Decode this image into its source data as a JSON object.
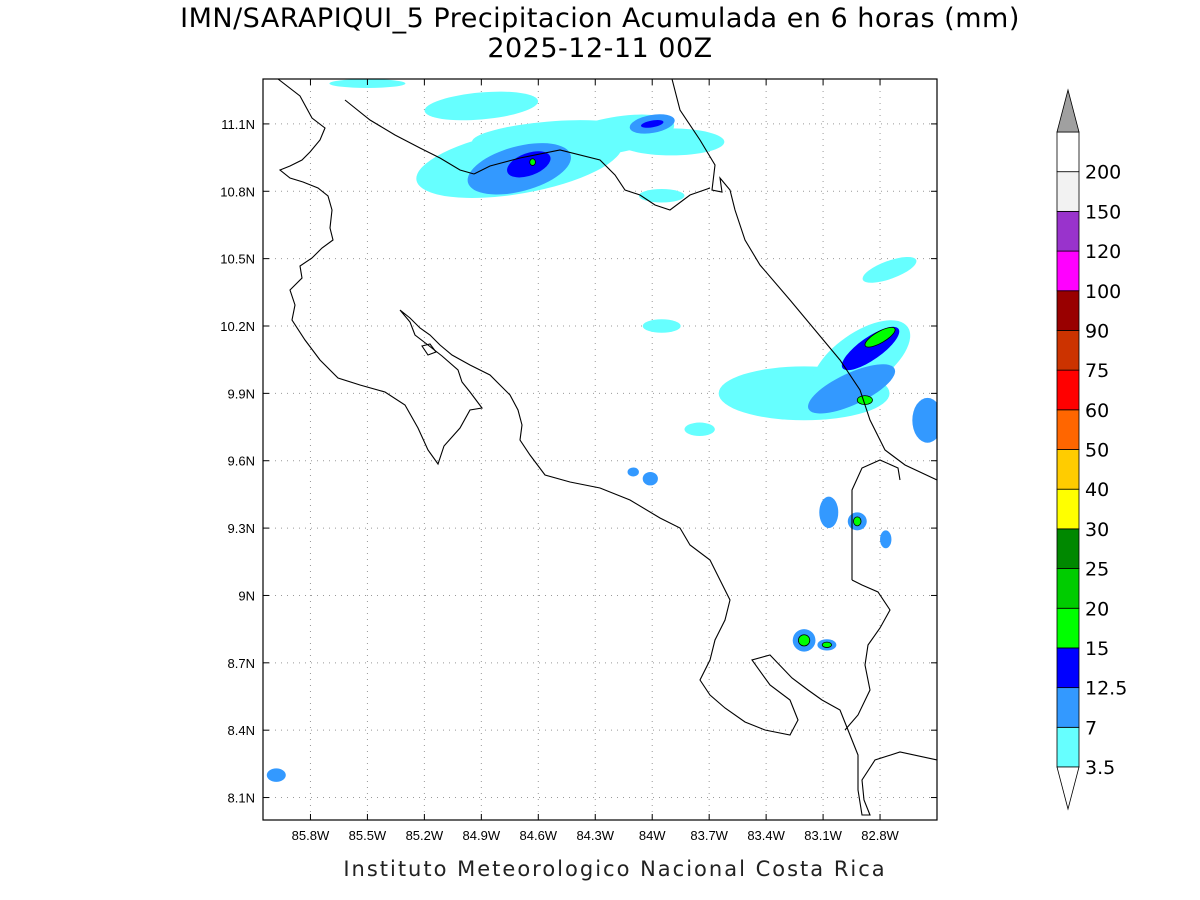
{
  "title": {
    "line1": "IMN/SARAPIQUI_5 Precipitacion Acumulada en 6 horas (mm)",
    "line2": "2025-12-11 00Z"
  },
  "footer": "Instituto Meteorologico Nacional Costa Rica",
  "map": {
    "lon_range": [
      -86.05,
      -82.5
    ],
    "lat_range": [
      8.0,
      11.3
    ],
    "lon_ticks": [
      {
        "value": -85.8,
        "label": "85.8W"
      },
      {
        "value": -85.5,
        "label": "85.5W"
      },
      {
        "value": -85.2,
        "label": "85.2W"
      },
      {
        "value": -84.9,
        "label": "84.9W"
      },
      {
        "value": -84.6,
        "label": "84.6W"
      },
      {
        "value": -84.3,
        "label": "84.3W"
      },
      {
        "value": -84.0,
        "label": "84W"
      },
      {
        "value": -83.7,
        "label": "83.7W"
      },
      {
        "value": -83.4,
        "label": "83.4W"
      },
      {
        "value": -83.1,
        "label": "83.1W"
      },
      {
        "value": -82.8,
        "label": "82.8W"
      }
    ],
    "lat_ticks": [
      {
        "value": 11.1,
        "label": "11.1N"
      },
      {
        "value": 10.8,
        "label": "10.8N"
      },
      {
        "value": 10.5,
        "label": "10.5N"
      },
      {
        "value": 10.2,
        "label": "10.2N"
      },
      {
        "value": 9.9,
        "label": "9.9N"
      },
      {
        "value": 9.6,
        "label": "9.6N"
      },
      {
        "value": 9.3,
        "label": "9.3N"
      },
      {
        "value": 9.0,
        "label": "9N"
      },
      {
        "value": 8.7,
        "label": "8.7N"
      },
      {
        "value": 8.4,
        "label": "8.4N"
      },
      {
        "value": 8.1,
        "label": "8.1N"
      }
    ],
    "grid": true,
    "colors": {
      "c3_5": "#66ffff",
      "c7": "#3399ff",
      "c12_5": "#0000ff",
      "c15": "#00ff00"
    },
    "precip_cells": [
      {
        "lon": -84.7,
        "lat": 10.93,
        "rlon": 0.55,
        "rlat": 0.14,
        "rot": -10,
        "level": "c3_5"
      },
      {
        "lon": -84.55,
        "lat": 11.05,
        "rlon": 0.4,
        "rlat": 0.06,
        "rot": -5,
        "level": "c3_5"
      },
      {
        "lon": -84.2,
        "lat": 11.05,
        "rlon": 0.32,
        "rlat": 0.08,
        "rot": -10,
        "level": "c3_5"
      },
      {
        "lon": -83.9,
        "lat": 11.02,
        "rlon": 0.28,
        "rlat": 0.06,
        "rot": 0,
        "level": "c3_5"
      },
      {
        "lon": -84.9,
        "lat": 11.18,
        "rlon": 0.3,
        "rlat": 0.06,
        "rot": -5,
        "level": "c3_5"
      },
      {
        "lon": -85.5,
        "lat": 11.28,
        "rlon": 0.2,
        "rlat": 0.02,
        "rot": 0,
        "level": "c3_5"
      },
      {
        "lon": -84.7,
        "lat": 10.9,
        "rlon": 0.28,
        "rlat": 0.1,
        "rot": -15,
        "level": "c7"
      },
      {
        "lon": -84.0,
        "lat": 11.1,
        "rlon": 0.12,
        "rlat": 0.04,
        "rot": -10,
        "level": "c7"
      },
      {
        "lon": -84.65,
        "lat": 10.92,
        "rlon": 0.12,
        "rlat": 0.05,
        "rot": -20,
        "level": "c12_5"
      },
      {
        "lon": -84.63,
        "lat": 10.93,
        "rlon": 0.015,
        "rlat": 0.015,
        "rot": 0,
        "level": "c15"
      },
      {
        "lon": -84.0,
        "lat": 11.1,
        "rlon": 0.06,
        "rlat": 0.015,
        "rot": -10,
        "level": "c12_5"
      },
      {
        "lon": -83.95,
        "lat": 10.78,
        "rlon": 0.12,
        "rlat": 0.03,
        "rot": 0,
        "level": "c3_5"
      },
      {
        "lon": -83.2,
        "lat": 9.9,
        "rlon": 0.45,
        "rlat": 0.12,
        "rot": 0,
        "level": "c3_5"
      },
      {
        "lon": -82.9,
        "lat": 10.05,
        "rlon": 0.3,
        "rlat": 0.12,
        "rot": -35,
        "level": "c3_5"
      },
      {
        "lon": -82.95,
        "lat": 9.92,
        "rlon": 0.25,
        "rlat": 0.07,
        "rot": -25,
        "level": "c7"
      },
      {
        "lon": -82.85,
        "lat": 10.1,
        "rlon": 0.18,
        "rlat": 0.05,
        "rot": -35,
        "level": "c12_5"
      },
      {
        "lon": -82.8,
        "lat": 10.15,
        "rlon": 0.09,
        "rlat": 0.025,
        "rot": -30,
        "level": "c15"
      },
      {
        "lon": -82.88,
        "lat": 9.87,
        "rlon": 0.04,
        "rlat": 0.02,
        "rot": 0,
        "level": "c15"
      },
      {
        "lon": -82.55,
        "lat": 9.78,
        "rlon": 0.08,
        "rlat": 0.1,
        "rot": 0,
        "level": "c7"
      },
      {
        "lon": -83.75,
        "lat": 9.74,
        "rlon": 0.08,
        "rlat": 0.03,
        "rot": 0,
        "level": "c3_5"
      },
      {
        "lon": -83.95,
        "lat": 10.2,
        "rlon": 0.1,
        "rlat": 0.03,
        "rot": 0,
        "level": "c3_5"
      },
      {
        "lon": -82.75,
        "lat": 10.45,
        "rlon": 0.15,
        "rlat": 0.04,
        "rot": -20,
        "level": "c3_5"
      },
      {
        "lon": -83.07,
        "lat": 9.37,
        "rlon": 0.05,
        "rlat": 0.07,
        "rot": 0,
        "level": "c7"
      },
      {
        "lon": -82.92,
        "lat": 9.33,
        "rlon": 0.05,
        "rlat": 0.04,
        "rot": 0,
        "level": "c7"
      },
      {
        "lon": -82.92,
        "lat": 9.33,
        "rlon": 0.02,
        "rlat": 0.02,
        "rot": 0,
        "level": "c15"
      },
      {
        "lon": -82.77,
        "lat": 9.25,
        "rlon": 0.03,
        "rlat": 0.04,
        "rot": 0,
        "level": "c7"
      },
      {
        "lon": -84.01,
        "lat": 9.52,
        "rlon": 0.04,
        "rlat": 0.03,
        "rot": 0,
        "level": "c7"
      },
      {
        "lon": -84.1,
        "lat": 9.55,
        "rlon": 0.03,
        "rlat": 0.02,
        "rot": 0,
        "level": "c7"
      },
      {
        "lon": -83.2,
        "lat": 8.8,
        "rlon": 0.06,
        "rlat": 0.05,
        "rot": 0,
        "level": "c7"
      },
      {
        "lon": -83.2,
        "lat": 8.8,
        "rlon": 0.03,
        "rlat": 0.025,
        "rot": 0,
        "level": "c15"
      },
      {
        "lon": -83.08,
        "lat": 8.78,
        "rlon": 0.05,
        "rlat": 0.025,
        "rot": 0,
        "level": "c7"
      },
      {
        "lon": -83.08,
        "lat": 8.78,
        "rlon": 0.025,
        "rlat": 0.012,
        "rot": 0,
        "level": "c15"
      },
      {
        "lon": -85.98,
        "lat": 8.2,
        "rlon": 0.05,
        "rlat": 0.03,
        "rot": 0,
        "level": "c7"
      }
    ]
  },
  "colorbar": {
    "top_color": "#a0a0a0",
    "bins": [
      {
        "color": "#66ffff",
        "label": "3.5"
      },
      {
        "color": "#3399ff",
        "label": "7"
      },
      {
        "color": "#0000ff",
        "label": "12.5"
      },
      {
        "color": "#00ff00",
        "label": "15"
      },
      {
        "color": "#00cc00",
        "label": "20"
      },
      {
        "color": "#008800",
        "label": "25"
      },
      {
        "color": "#ffff00",
        "label": "30"
      },
      {
        "color": "#ffcc00",
        "label": "40"
      },
      {
        "color": "#ff6600",
        "label": "50"
      },
      {
        "color": "#ff0000",
        "label": "60"
      },
      {
        "color": "#cc3300",
        "label": "75"
      },
      {
        "color": "#990000",
        "label": "90"
      },
      {
        "color": "#ff00ff",
        "label": "100"
      },
      {
        "color": "#9933cc",
        "label": "120"
      },
      {
        "color": "#f2f2f2",
        "label": "150"
      },
      {
        "color": "#ffffff",
        "label": "200"
      }
    ]
  }
}
